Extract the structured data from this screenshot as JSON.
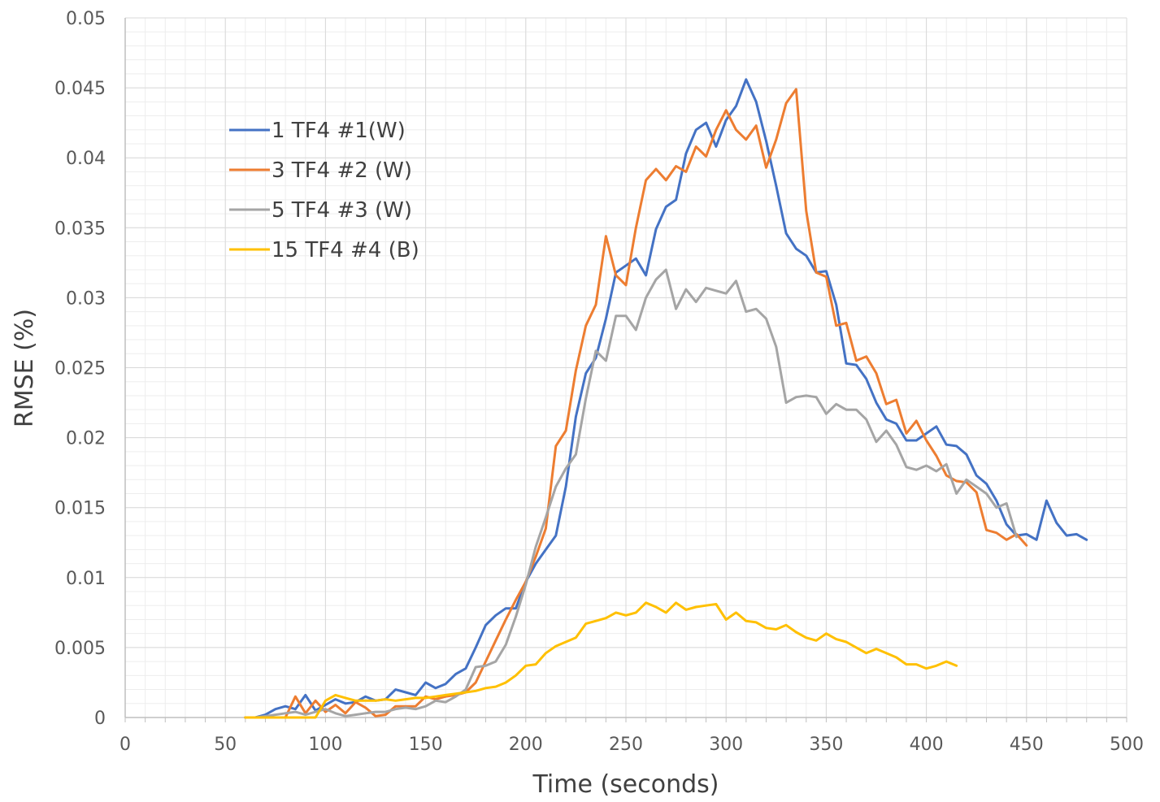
{
  "chart_data": {
    "type": "line",
    "title": "",
    "xlabel": "Time (seconds)",
    "ylabel": "RMSE (%)",
    "xlim": [
      0,
      500
    ],
    "ylim": [
      0,
      0.05
    ],
    "x_ticks": [
      "0",
      "50",
      "100",
      "150",
      "200",
      "250",
      "300",
      "350",
      "400",
      "450",
      "500"
    ],
    "y_ticks": [
      "0",
      "0.005",
      "0.01",
      "0.015",
      "0.02",
      "0.025",
      "0.03",
      "0.035",
      "0.04",
      "0.045",
      "0.05"
    ],
    "grid": true,
    "legend_position": "top-left",
    "series": [
      {
        "name": "1 TF4 #1(W)",
        "color": "#4472C4",
        "x": [
          60,
          65,
          70,
          75,
          80,
          85,
          90,
          95,
          100,
          105,
          110,
          115,
          120,
          125,
          130,
          135,
          140,
          145,
          150,
          155,
          160,
          165,
          170,
          175,
          180,
          185,
          190,
          195,
          200,
          205,
          210,
          215,
          220,
          225,
          230,
          235,
          240,
          245,
          250,
          255,
          260,
          265,
          270,
          275,
          280,
          285,
          290,
          295,
          300,
          305,
          310,
          315,
          320,
          325,
          330,
          335,
          340,
          345,
          350,
          355,
          360,
          365,
          370,
          375,
          380,
          385,
          390,
          395,
          400,
          405,
          410,
          415,
          420,
          425,
          430,
          435,
          440,
          445,
          450,
          455,
          460,
          465,
          470,
          475,
          480
        ],
        "y": [
          0,
          0,
          0.0002,
          0.0006,
          0.0008,
          0.0006,
          0.0016,
          0.0005,
          0.0009,
          0.0013,
          0.001,
          0.0011,
          0.0015,
          0.0012,
          0.0013,
          0.002,
          0.0018,
          0.0016,
          0.0025,
          0.0021,
          0.0024,
          0.0031,
          0.0035,
          0.005,
          0.0066,
          0.0073,
          0.0078,
          0.0078,
          0.0097,
          0.011,
          0.012,
          0.013,
          0.0165,
          0.0215,
          0.0246,
          0.0257,
          0.0285,
          0.0318,
          0.0323,
          0.0328,
          0.0316,
          0.0349,
          0.0365,
          0.037,
          0.0403,
          0.042,
          0.0425,
          0.0408,
          0.0427,
          0.0437,
          0.0456,
          0.044,
          0.0412,
          0.038,
          0.0346,
          0.0335,
          0.033,
          0.0318,
          0.0319,
          0.0295,
          0.0253,
          0.0252,
          0.0242,
          0.0225,
          0.0213,
          0.021,
          0.0198,
          0.0198,
          0.0203,
          0.0208,
          0.0195,
          0.0194,
          0.0188,
          0.0173,
          0.0167,
          0.0155,
          0.0138,
          0.013,
          0.0131,
          0.0127,
          0.0155,
          0.0139,
          0.013,
          0.0131,
          0.0127
        ]
      },
      {
        "name": "3 TF4 #2 (W)",
        "color": "#ED7D31",
        "x": [
          60,
          65,
          70,
          75,
          80,
          85,
          90,
          95,
          100,
          105,
          110,
          115,
          120,
          125,
          130,
          135,
          140,
          145,
          150,
          155,
          160,
          165,
          170,
          175,
          180,
          185,
          190,
          195,
          200,
          205,
          210,
          215,
          220,
          225,
          230,
          235,
          240,
          245,
          250,
          255,
          260,
          265,
          270,
          275,
          280,
          285,
          290,
          295,
          300,
          305,
          310,
          315,
          320,
          325,
          330,
          335,
          340,
          345,
          350,
          355,
          360,
          365,
          370,
          375,
          380,
          385,
          390,
          395,
          400,
          405,
          410,
          415,
          420,
          425,
          430,
          435,
          440,
          445,
          450
        ],
        "y": [
          0,
          0,
          0,
          0,
          0,
          0.0015,
          0.0003,
          0.0012,
          0.0004,
          0.0009,
          0.0003,
          0.0011,
          0.0007,
          0.0001,
          0.0002,
          0.0008,
          0.0008,
          0.0008,
          0.0015,
          0.0013,
          0.0015,
          0.0016,
          0.0018,
          0.0025,
          0.004,
          0.0055,
          0.007,
          0.0084,
          0.0097,
          0.0115,
          0.0135,
          0.0194,
          0.0205,
          0.0248,
          0.028,
          0.0295,
          0.0344,
          0.0316,
          0.0309,
          0.035,
          0.0384,
          0.0392,
          0.0384,
          0.0394,
          0.039,
          0.0408,
          0.0401,
          0.042,
          0.0434,
          0.042,
          0.0413,
          0.0423,
          0.0393,
          0.0413,
          0.0439,
          0.0449,
          0.0362,
          0.0318,
          0.0315,
          0.028,
          0.0282,
          0.0255,
          0.0258,
          0.0246,
          0.0224,
          0.0227,
          0.0203,
          0.0212,
          0.0198,
          0.0187,
          0.0173,
          0.0169,
          0.0168,
          0.0161,
          0.0134,
          0.0132,
          0.0127,
          0.0131,
          0.0123
        ]
      },
      {
        "name": "5 TF4 #3 (W)",
        "color": "#A5A5A5",
        "x": [
          60,
          65,
          70,
          75,
          80,
          85,
          90,
          95,
          100,
          105,
          110,
          115,
          120,
          125,
          130,
          135,
          140,
          145,
          150,
          155,
          160,
          165,
          170,
          175,
          180,
          185,
          190,
          195,
          200,
          205,
          210,
          215,
          220,
          225,
          230,
          235,
          240,
          245,
          250,
          255,
          260,
          265,
          270,
          275,
          280,
          285,
          290,
          295,
          300,
          305,
          310,
          315,
          320,
          325,
          330,
          335,
          340,
          345,
          350,
          355,
          360,
          365,
          370,
          375,
          380,
          385,
          390,
          395,
          400,
          405,
          410,
          415,
          420,
          425,
          430,
          435,
          440,
          445
        ],
        "y": [
          0,
          0,
          0.0001,
          0.0002,
          0.0003,
          0.0004,
          0.0002,
          0.0004,
          0.0006,
          0.0003,
          0.0001,
          0.0002,
          0.0003,
          0.0004,
          0.0004,
          0.0006,
          0.0007,
          0.0006,
          0.0008,
          0.0012,
          0.0011,
          0.0015,
          0.002,
          0.0036,
          0.0037,
          0.004,
          0.0052,
          0.0072,
          0.0095,
          0.0122,
          0.0143,
          0.0165,
          0.0178,
          0.0188,
          0.0228,
          0.0262,
          0.0255,
          0.0287,
          0.0287,
          0.0277,
          0.03,
          0.0313,
          0.032,
          0.0292,
          0.0306,
          0.0297,
          0.0307,
          0.0305,
          0.0303,
          0.0312,
          0.029,
          0.0292,
          0.0285,
          0.0265,
          0.0225,
          0.0229,
          0.023,
          0.0229,
          0.0217,
          0.0224,
          0.022,
          0.022,
          0.0213,
          0.0197,
          0.0205,
          0.0195,
          0.0179,
          0.0177,
          0.018,
          0.0176,
          0.0181,
          0.016,
          0.017,
          0.0165,
          0.016,
          0.015,
          0.0153,
          0.0129
        ]
      },
      {
        "name": "15 TF4 #4 (B)",
        "color": "#FFC000",
        "x": [
          60,
          65,
          70,
          75,
          80,
          85,
          90,
          95,
          100,
          105,
          110,
          115,
          120,
          125,
          130,
          135,
          140,
          145,
          150,
          155,
          160,
          165,
          170,
          175,
          180,
          185,
          190,
          195,
          200,
          205,
          210,
          215,
          220,
          225,
          230,
          235,
          240,
          245,
          250,
          255,
          260,
          265,
          270,
          275,
          280,
          285,
          290,
          295,
          300,
          305,
          310,
          315,
          320,
          325,
          330,
          335,
          340,
          345,
          350,
          355,
          360,
          365,
          370,
          375,
          380,
          385,
          390,
          395,
          400,
          405,
          410,
          415
        ],
        "y": [
          0,
          0,
          0,
          0,
          0,
          0,
          0,
          0,
          0.0012,
          0.0016,
          0.0014,
          0.0012,
          0.0012,
          0.0012,
          0.0013,
          0.0012,
          0.0013,
          0.0014,
          0.0014,
          0.0015,
          0.0016,
          0.0017,
          0.0018,
          0.0019,
          0.0021,
          0.0022,
          0.0025,
          0.003,
          0.0037,
          0.0038,
          0.0046,
          0.0051,
          0.0054,
          0.0057,
          0.0067,
          0.0069,
          0.0071,
          0.0075,
          0.0073,
          0.0075,
          0.0082,
          0.0079,
          0.0075,
          0.0082,
          0.0077,
          0.0079,
          0.008,
          0.0081,
          0.007,
          0.0075,
          0.0069,
          0.0068,
          0.0064,
          0.0063,
          0.0066,
          0.0061,
          0.0057,
          0.0055,
          0.006,
          0.0056,
          0.0054,
          0.005,
          0.0046,
          0.0049,
          0.0046,
          0.0043,
          0.0038,
          0.0038,
          0.0035,
          0.0037,
          0.004,
          0.0037
        ]
      }
    ]
  },
  "colors": {
    "axis": "#BFBFBF",
    "grid_major": "#D9D9D9",
    "grid_minor": "#EDEDED"
  }
}
